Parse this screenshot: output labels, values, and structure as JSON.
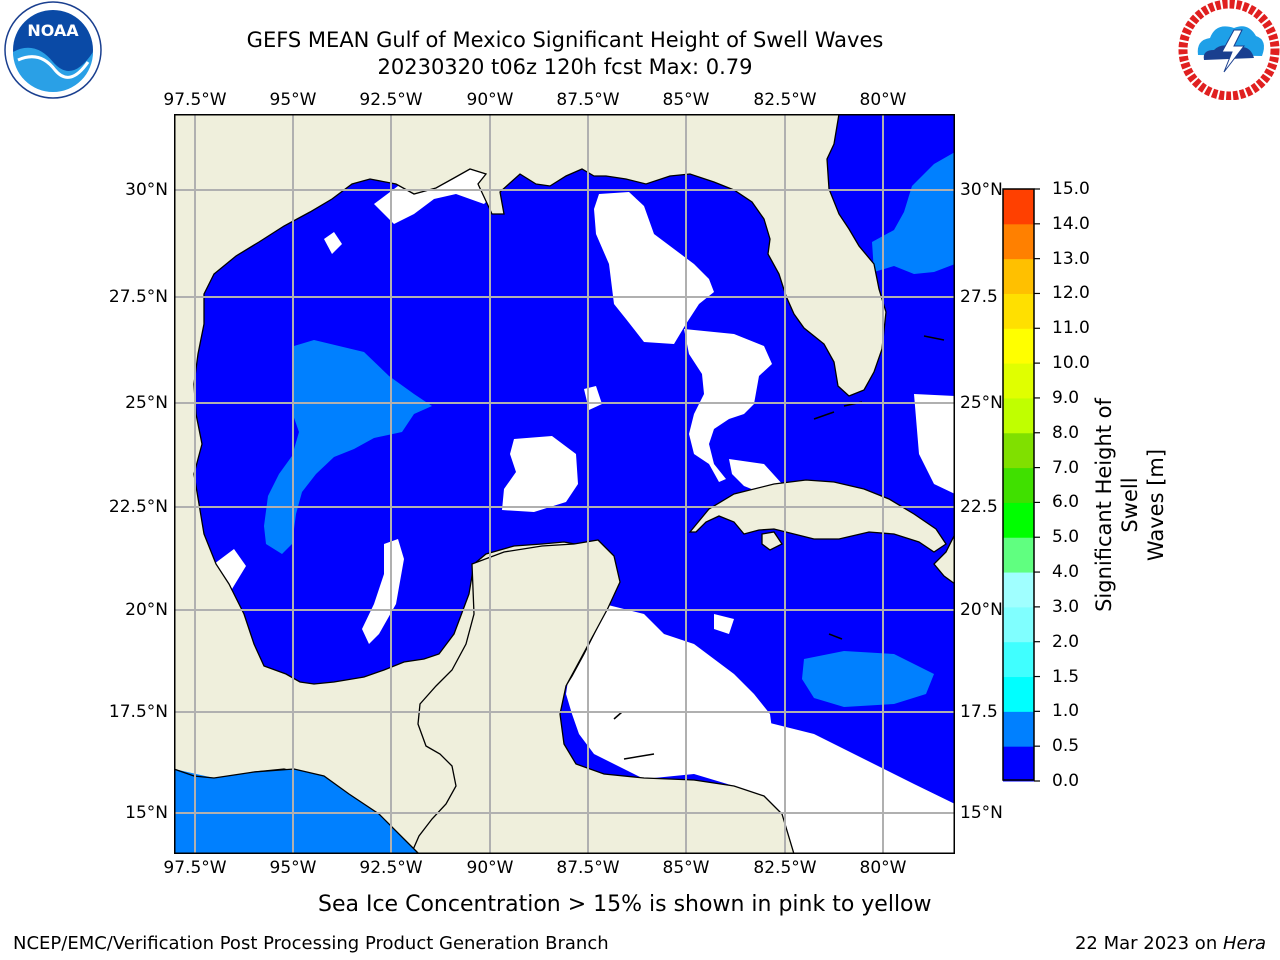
{
  "header": {
    "title_line1": "GEFS MEAN Gulf of Mexico Significant Height of Swell Waves",
    "title_line2": "20230320 t06z 120h fcst   Max: 0.79"
  },
  "logos": {
    "left": {
      "icon": "noaa-logo",
      "text": "NOAA",
      "ring_text": "NATIONAL OCEANIC AND ATMOSPHERIC ADMINISTRATION · U.S. DEPARTMENT OF COMMERCE"
    },
    "right": {
      "icon": "nws-logo",
      "ring_text": "NATIONAL WEATHER SERVICE"
    }
  },
  "map": {
    "lon_ticks": [
      "97.5°W",
      "95°W",
      "92.5°W",
      "90°W",
      "87.5°W",
      "85°W",
      "82.5°W",
      "80°W"
    ],
    "lat_ticks": [
      "30°N",
      "27.5°N",
      "25°N",
      "22.5°N",
      "20°N",
      "17.5°N",
      "15°N"
    ],
    "lat_ticks_right": [
      "30°N",
      "27.5",
      "25°N",
      "22.5",
      "20°N",
      "17.5",
      "15°N"
    ],
    "colors": {
      "land": "#efefdc",
      "swell_0_05": "#0000ff",
      "swell_05_10": "#0080ff",
      "no_data": "#ffffff",
      "grid": "#b0b0b0"
    }
  },
  "colorbar": {
    "label_line1": "Significant Height of Swell",
    "label_line2": "Waves [m]",
    "ticks": [
      "15.0",
      "14.0",
      "13.0",
      "12.0",
      "11.0",
      "10.0",
      "9.0",
      "8.0",
      "7.0",
      "6.0",
      "5.0",
      "4.0",
      "3.0",
      "2.0",
      "1.5",
      "1.0",
      "0.5",
      "0.0"
    ],
    "colors_bottom_to_top": [
      "#0000ff",
      "#0080ff",
      "#00ffff",
      "#40ffff",
      "#80ffff",
      "#a0ffff",
      "#60ff80",
      "#00ff00",
      "#40e000",
      "#80e000",
      "#c0ff00",
      "#e0ff00",
      "#ffff00",
      "#ffe000",
      "#ffc000",
      "#ff8000",
      "#ff4000",
      "#ff0000"
    ]
  },
  "footer": {
    "note": "Sea Ice Concentration > 15% is shown in pink to yellow",
    "left": "NCEP/EMC/Verification Post Processing Product Generation Branch",
    "right_prefix": "22 Mar 2023 on ",
    "right_host": "Hera"
  }
}
